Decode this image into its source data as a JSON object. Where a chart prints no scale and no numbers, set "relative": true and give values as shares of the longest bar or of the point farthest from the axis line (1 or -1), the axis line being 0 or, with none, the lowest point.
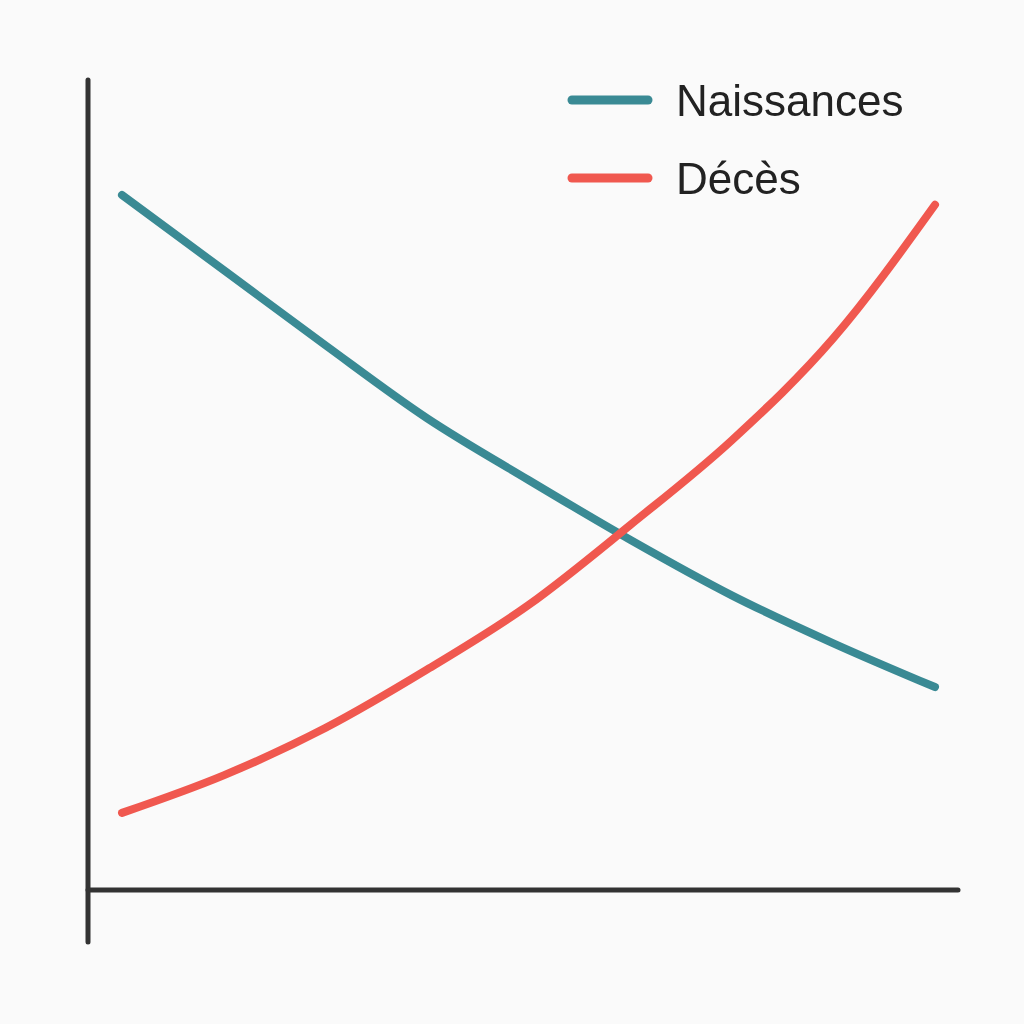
{
  "chart_data": {
    "type": "line",
    "relative": true,
    "categories": [
      null,
      null,
      null,
      null,
      null,
      null,
      null,
      null,
      null
    ],
    "legend": "top right",
    "marker": "none",
    "line_style": "solid",
    "series": [
      {
        "name": "Naissances",
        "color": "#3a8a94",
        "values": [
          1,
          0.892,
          0.784,
          0.679,
          0.59,
          0.504,
          0.424,
          0.355,
          0.292
        ]
      },
      {
        "name": "Décès",
        "color": "#f0584f",
        "values": [
          0.111,
          0.165,
          0.233,
          0.317,
          0.41,
          0.525,
          0.647,
          0.794,
          0.986
        ]
      }
    ]
  }
}
